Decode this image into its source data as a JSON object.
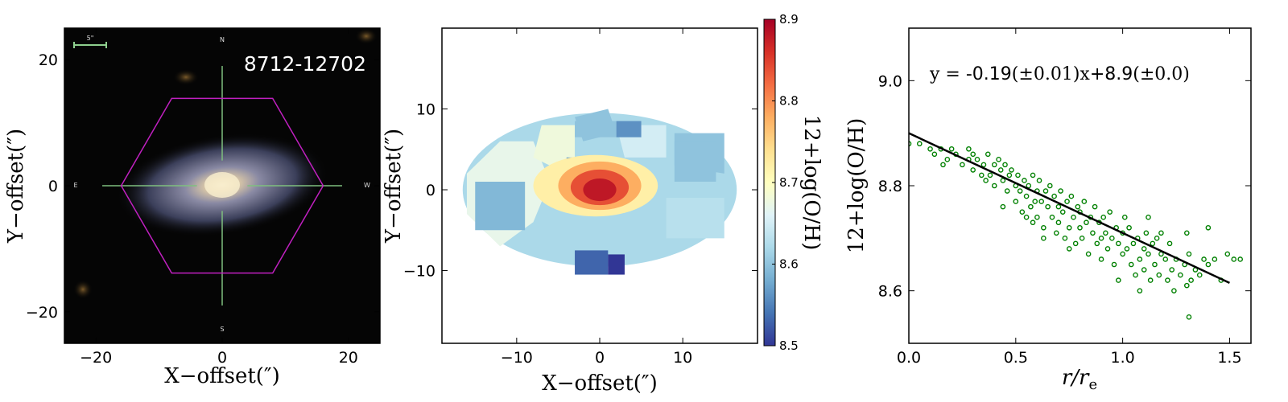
{
  "chart_data": [
    {
      "type": "image",
      "panel": "sdss-image",
      "title": "8712-12702",
      "xlabel": "X−offset(″)",
      "ylabel": "Y−offset(″)",
      "xlim": [
        -25,
        25
      ],
      "ylim": [
        -25,
        25
      ],
      "xticks": [
        -20,
        0,
        20
      ],
      "yticks": [
        -20,
        0,
        20
      ],
      "scale_bar_label": "5\"",
      "compass": {
        "north": "N",
        "south": "S",
        "east": "E",
        "west": "W"
      },
      "ifu_hexagon_radius_arcsec": 16,
      "colors": {
        "background": "#050505",
        "hexagon": "#c020c0",
        "crosshair": "#7fbf7f",
        "scale_bar": "#8fd08f"
      }
    },
    {
      "type": "heatmap",
      "panel": "metallicity-map",
      "xlabel": "X−offset(″)",
      "ylabel": "Y−offset(″)",
      "xlim": [
        -19,
        19
      ],
      "ylim": [
        -19,
        20
      ],
      "xticks": [
        -10,
        0,
        10
      ],
      "yticks": [
        -10,
        0,
        10
      ],
      "colorbar": {
        "label": "12+log(O/H)",
        "range": [
          8.5,
          8.9
        ],
        "ticks": [
          8.5,
          8.6,
          8.7,
          8.8,
          8.9
        ],
        "colormap": "RdYlBu_r"
      },
      "regions": [
        {
          "shape": "ellipse",
          "x": 0,
          "y": 0,
          "rx": 16.5,
          "ry": 9.5,
          "value": 8.62
        },
        {
          "shape": "polygon",
          "points": [
            [
              -16,
              2
            ],
            [
              -12,
              6
            ],
            [
              -8,
              6
            ],
            [
              -6,
              1
            ],
            [
              -8,
              -4
            ],
            [
              -12,
              -7
            ],
            [
              -16,
              -3
            ]
          ],
          "value": 8.67
        },
        {
          "shape": "polygon",
          "points": [
            [
              -7,
              8
            ],
            [
              -3,
              8
            ],
            [
              -3,
              4
            ],
            [
              -6,
              3
            ],
            [
              -8,
              4
            ]
          ],
          "value": 8.68
        },
        {
          "shape": "polygon",
          "points": [
            [
              -3,
              9
            ],
            [
              1,
              10
            ],
            [
              2,
              7
            ],
            [
              -2,
              6
            ]
          ],
          "value": 8.6
        },
        {
          "shape": "polygon",
          "points": [
            [
              2,
              8
            ],
            [
              8,
              8
            ],
            [
              8,
              4
            ],
            [
              3,
              4
            ]
          ],
          "value": 8.65
        },
        {
          "shape": "polygon",
          "points": [
            [
              9,
              7
            ],
            [
              15,
              7
            ],
            [
              15,
              2
            ],
            [
              9,
              3
            ]
          ],
          "value": 8.6
        },
        {
          "shape": "polygon",
          "points": [
            [
              8,
              -1
            ],
            [
              15,
              -1
            ],
            [
              15,
              -6
            ],
            [
              8,
              -6
            ]
          ],
          "value": 8.63
        },
        {
          "shape": "polygon",
          "points": [
            [
              -15,
              1
            ],
            [
              -9,
              1
            ],
            [
              -9,
              -5
            ],
            [
              -15,
              -5
            ]
          ],
          "value": 8.59
        },
        {
          "shape": "polygon",
          "points": [
            [
              -4,
              -5
            ],
            [
              2,
              -5
            ],
            [
              2,
              -8
            ],
            [
              -4,
              -8
            ]
          ],
          "value": 8.62
        },
        {
          "shape": "rect",
          "x": -3,
          "y": 8.5,
          "w": 5,
          "h": 2,
          "value": 8.6
        },
        {
          "shape": "rect",
          "x": 2,
          "y": 8.5,
          "w": 3,
          "h": 2,
          "value": 8.56
        },
        {
          "shape": "rect",
          "x": -3,
          "y": -7.5,
          "w": 4,
          "h": 3,
          "value": 8.53
        },
        {
          "shape": "rect",
          "x": 1,
          "y": -8,
          "w": 2,
          "h": 2.5,
          "value": 8.5
        },
        {
          "shape": "rect",
          "x": -4,
          "y": 4,
          "w": 2,
          "h": 1.5,
          "value": 8.57
        },
        {
          "shape": "rect",
          "x": 9,
          "y": 6,
          "w": 5,
          "h": 5,
          "value": 8.6
        },
        {
          "shape": "ellipse",
          "x": -0.5,
          "y": 0.5,
          "rx": 7.5,
          "ry": 3.8,
          "value": 8.72
        },
        {
          "shape": "ellipse",
          "x": 0,
          "y": 0.5,
          "rx": 5,
          "ry": 3,
          "value": 8.78
        },
        {
          "shape": "ellipse",
          "x": 0,
          "y": 0.3,
          "rx": 3.5,
          "ry": 2.2,
          "value": 8.84
        },
        {
          "shape": "ellipse",
          "x": 0,
          "y": 0,
          "rx": 2,
          "ry": 1.4,
          "value": 8.88
        }
      ]
    },
    {
      "type": "scatter",
      "panel": "gradient",
      "xlabel": "r/r_e",
      "ylabel": "12+log(O/H)",
      "xlim": [
        0,
        1.6
      ],
      "ylim": [
        8.5,
        9.1
      ],
      "xticks": [
        0.0,
        0.5,
        1.0,
        1.5
      ],
      "yticks": [
        8.6,
        8.8,
        9.0
      ],
      "fit_annotation": {
        "prefix": "y = ",
        "slope": "-0.19",
        "slope_err": "±0.01",
        "intercept": "+8.9",
        "intercept_err": "±0.0"
      },
      "fit": {
        "slope": -0.19,
        "intercept": 8.9,
        "x_range": [
          0.0,
          1.5
        ]
      },
      "series": [
        {
          "marker": "open-circle",
          "color": "#008000",
          "points": [
            [
              0.0,
              8.88
            ],
            [
              0.05,
              8.88
            ],
            [
              0.1,
              8.87
            ],
            [
              0.12,
              8.86
            ],
            [
              0.15,
              8.87
            ],
            [
              0.18,
              8.85
            ],
            [
              0.2,
              8.87
            ],
            [
              0.22,
              8.86
            ],
            [
              0.25,
              8.84
            ],
            [
              0.28,
              8.87
            ],
            [
              0.3,
              8.86
            ],
            [
              0.3,
              8.83
            ],
            [
              0.32,
              8.85
            ],
            [
              0.34,
              8.82
            ],
            [
              0.35,
              8.84
            ],
            [
              0.37,
              8.86
            ],
            [
              0.38,
              8.82
            ],
            [
              0.4,
              8.84
            ],
            [
              0.4,
              8.8
            ],
            [
              0.42,
              8.85
            ],
            [
              0.43,
              8.83
            ],
            [
              0.44,
              8.81
            ],
            [
              0.45,
              8.84
            ],
            [
              0.46,
              8.79
            ],
            [
              0.47,
              8.82
            ],
            [
              0.48,
              8.83
            ],
            [
              0.5,
              8.8
            ],
            [
              0.5,
              8.77
            ],
            [
              0.51,
              8.82
            ],
            [
              0.52,
              8.79
            ],
            [
              0.53,
              8.75
            ],
            [
              0.54,
              8.81
            ],
            [
              0.55,
              8.78
            ],
            [
              0.56,
              8.8
            ],
            [
              0.57,
              8.76
            ],
            [
              0.58,
              8.82
            ],
            [
              0.59,
              8.77
            ],
            [
              0.6,
              8.79
            ],
            [
              0.6,
              8.74
            ],
            [
              0.61,
              8.81
            ],
            [
              0.62,
              8.77
            ],
            [
              0.63,
              8.72
            ],
            [
              0.64,
              8.79
            ],
            [
              0.65,
              8.76
            ],
            [
              0.66,
              8.8
            ],
            [
              0.67,
              8.74
            ],
            [
              0.68,
              8.78
            ],
            [
              0.69,
              8.71
            ],
            [
              0.7,
              8.76
            ],
            [
              0.7,
              8.73
            ],
            [
              0.71,
              8.79
            ],
            [
              0.72,
              8.75
            ],
            [
              0.73,
              8.7
            ],
            [
              0.74,
              8.77
            ],
            [
              0.75,
              8.72
            ],
            [
              0.76,
              8.78
            ],
            [
              0.77,
              8.74
            ],
            [
              0.78,
              8.69
            ],
            [
              0.79,
              8.76
            ],
            [
              0.8,
              8.72
            ],
            [
              0.8,
              8.75
            ],
            [
              0.81,
              8.7
            ],
            [
              0.82,
              8.77
            ],
            [
              0.83,
              8.73
            ],
            [
              0.84,
              8.67
            ],
            [
              0.85,
              8.74
            ],
            [
              0.86,
              8.71
            ],
            [
              0.87,
              8.76
            ],
            [
              0.88,
              8.69
            ],
            [
              0.89,
              8.73
            ],
            [
              0.9,
              8.7
            ],
            [
              0.9,
              8.66
            ],
            [
              0.91,
              8.74
            ],
            [
              0.92,
              8.71
            ],
            [
              0.93,
              8.68
            ],
            [
              0.94,
              8.75
            ],
            [
              0.95,
              8.7
            ],
            [
              0.96,
              8.65
            ],
            [
              0.97,
              8.72
            ],
            [
              0.98,
              8.69
            ],
            [
              1.0,
              8.71
            ],
            [
              1.0,
              8.67
            ],
            [
              1.01,
              8.74
            ],
            [
              1.02,
              8.68
            ],
            [
              1.03,
              8.72
            ],
            [
              1.04,
              8.65
            ],
            [
              1.05,
              8.69
            ],
            [
              1.06,
              8.63
            ],
            [
              1.07,
              8.7
            ],
            [
              1.08,
              8.66
            ],
            [
              1.1,
              8.68
            ],
            [
              1.1,
              8.64
            ],
            [
              1.11,
              8.71
            ],
            [
              1.12,
              8.67
            ],
            [
              1.13,
              8.62
            ],
            [
              1.14,
              8.69
            ],
            [
              1.15,
              8.65
            ],
            [
              1.16,
              8.7
            ],
            [
              1.17,
              8.63
            ],
            [
              1.18,
              8.67
            ],
            [
              1.2,
              8.66
            ],
            [
              1.21,
              8.62
            ],
            [
              1.22,
              8.69
            ],
            [
              1.23,
              8.64
            ],
            [
              1.24,
              8.6
            ],
            [
              1.25,
              8.66
            ],
            [
              1.27,
              8.63
            ],
            [
              1.29,
              8.65
            ],
            [
              1.3,
              8.61
            ],
            [
              1.31,
              8.67
            ],
            [
              1.32,
              8.62
            ],
            [
              1.34,
              8.64
            ],
            [
              1.36,
              8.63
            ],
            [
              1.38,
              8.66
            ],
            [
              1.4,
              8.65
            ],
            [
              1.43,
              8.66
            ],
            [
              1.46,
              8.62
            ],
            [
              1.49,
              8.67
            ],
            [
              1.52,
              8.66
            ],
            [
              1.55,
              8.66
            ],
            [
              1.4,
              8.72
            ],
            [
              1.3,
              8.71
            ],
            [
              1.18,
              8.71
            ],
            [
              1.12,
              8.74
            ],
            [
              0.55,
              8.74
            ],
            [
              0.63,
              8.7
            ],
            [
              0.75,
              8.68
            ],
            [
              0.58,
              8.73
            ],
            [
              1.31,
              8.55
            ],
            [
              0.44,
              8.76
            ],
            [
              0.28,
              8.85
            ],
            [
              0.36,
              8.81
            ],
            [
              0.16,
              8.84
            ],
            [
              1.08,
              8.6
            ],
            [
              0.98,
              8.62
            ]
          ]
        }
      ]
    }
  ]
}
